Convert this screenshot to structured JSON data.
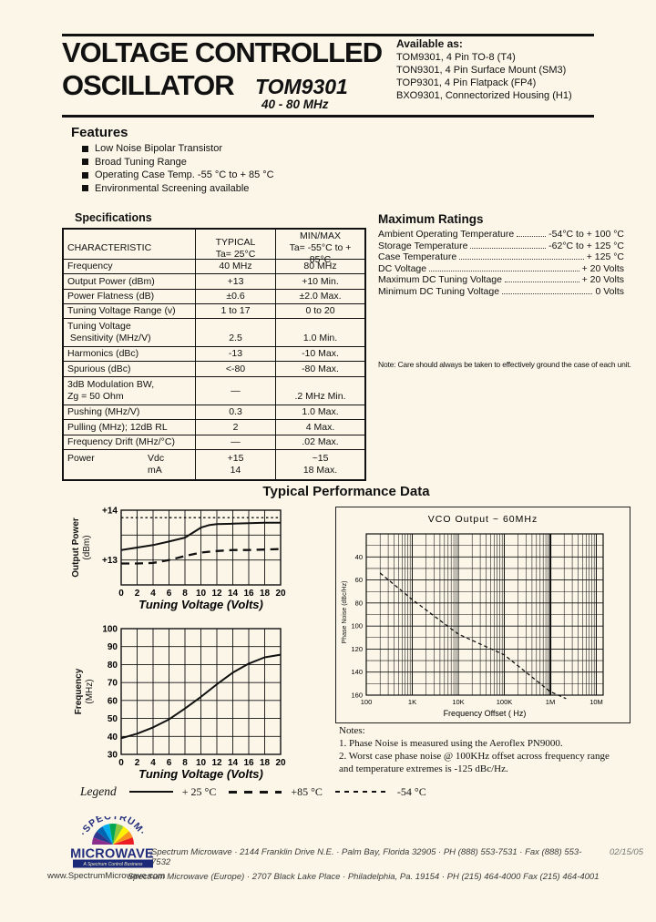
{
  "header": {
    "title_line1": "VOLTAGE CONTROLLED",
    "title_line2": "OSCILLATOR",
    "model": "TOM9301",
    "range": "40 - 80 MHz",
    "available_heading": "Available as:",
    "available": [
      "TOM9301, 4 Pin TO-8 (T4)",
      "TON9301, 4 Pin Surface Mount (SM3)",
      "TOP9301, 4 Pin Flatpack (FP4)",
      "BXO9301, Connectorized Housing (H1)"
    ]
  },
  "features": {
    "heading": "Features",
    "items": [
      "Low Noise Bipolar Transistor",
      "Broad Tuning Range",
      "Operating Case Temp. -55 °C to + 85 °C",
      "Environmental Screening available"
    ]
  },
  "specifications": {
    "heading": "Specifications",
    "header_row": {
      "c": [
        "CHARACTERISTIC"
      ],
      "t": [
        "TYPICAL",
        "Ta= 25°C"
      ],
      "m": [
        "MIN/MAX",
        "Ta= -55°C to + 85°C"
      ],
      "h": 32
    },
    "rows": [
      {
        "c": [
          "Frequency"
        ],
        "t": [
          "40 MHz"
        ],
        "m": [
          "80 MHz"
        ],
        "h": 15
      },
      {
        "c": [
          "Output Power (dBm)"
        ],
        "t": [
          "+13"
        ],
        "m": [
          "+10  Min."
        ],
        "h": 16
      },
      {
        "c": [
          "Power Flatness (dB)"
        ],
        "t": [
          "±0.6"
        ],
        "m": [
          "±2.0 Max."
        ],
        "h": 15
      },
      {
        "c": [
          "Tuning Voltage Range (v)"
        ],
        "t": [
          "1 to 17"
        ],
        "m": [
          "0 to 20"
        ],
        "h": 15
      },
      {
        "c": [
          "Tuning Voltage",
          " Sensitivity (MHz/V)"
        ],
        "t": [
          "",
          "2.5"
        ],
        "m": [
          "",
          "1.0 Min."
        ],
        "h": 30
      },
      {
        "c": [
          "Harmonics (dBc)"
        ],
        "t": [
          "-13"
        ],
        "m": [
          "-10 Max."
        ],
        "h": 15
      },
      {
        "c": [
          "Spurious (dBc)"
        ],
        "t": [
          "<-80"
        ],
        "m": [
          "-80 Max."
        ],
        "h": 16
      },
      {
        "c": [
          "3dB Modulation BW,",
          "Zg = 50 Ohm"
        ],
        "t": [
          "—"
        ],
        "m": [
          "",
          ".2 MHz Min."
        ],
        "h": 30
      },
      {
        "c": [
          "Pushing (MHz/V)"
        ],
        "t": [
          "0.3"
        ],
        "m": [
          "1.0 Max."
        ],
        "h": 15
      },
      {
        "c": [
          "Pulling (MHz); 12dB RL"
        ],
        "t": [
          "2"
        ],
        "m": [
          "4 Max."
        ],
        "h": 16
      },
      {
        "c": [
          "Frequency Drift (MHz/°C)"
        ],
        "t": [
          "—"
        ],
        "m": [
          ".02 Max."
        ],
        "h": 15
      },
      {
        "c": [
          {
            "t": "Power",
            "s": "Vdc"
          },
          {
            "t": "",
            "s": "mA"
          }
        ],
        "t": [
          "+15",
          "14"
        ],
        "m": [
          "~15",
          "18 Max."
        ],
        "h": 32
      }
    ]
  },
  "maximum_ratings": {
    "heading": "Maximum Ratings",
    "items": [
      {
        "label": "Ambient Operating Temperature",
        "value": "-54°C to + 100 °C"
      },
      {
        "label": "Storage Temperature",
        "value": "-62°C to + 125 °C"
      },
      {
        "label": "Case Temperature",
        "value": "+ 125 °C"
      },
      {
        "label": "DC Voltage",
        "value": "+ 20 Volts"
      },
      {
        "label": "Maximum DC Tuning Voltage",
        "value": "+ 20 Volts"
      },
      {
        "label": "Minimum DC Tuning Voltage",
        "value": "0 Volts"
      }
    ],
    "note": "Note: Care should always be taken to effectively ground the case of each unit."
  },
  "performance": {
    "heading": "Typical Performance Data",
    "legend": {
      "label": "Legend",
      "entries": [
        {
          "style": "solid",
          "label": "+ 25 °C"
        },
        {
          "style": "long-dash",
          "label": "+85 °C"
        },
        {
          "style": "short-dash",
          "label": "-54 °C"
        }
      ]
    },
    "notes": [
      "Notes:",
      "1. Phase Noise is measured using the Aeroflex PN9000.",
      "2. Worst case phase noise @ 100KHz offset across frequency range",
      "and temperature extremes is -125 dBc/Hz."
    ]
  },
  "chart_data": [
    {
      "type": "line",
      "title": "",
      "xlabel": "Tuning Voltage (Volts)",
      "ylabel": "Output Power (dBm)",
      "ylabel_line1": "Output Power",
      "ylabel_line2": "(dBm)",
      "xlim": [
        0,
        20
      ],
      "ylim": [
        12.5,
        14
      ],
      "xticks": [
        0,
        2,
        4,
        6,
        8,
        10,
        12,
        14,
        16,
        18,
        20
      ],
      "yticks": [
        {
          "v": 14,
          "label": "+14"
        },
        {
          "v": 13,
          "label": "+13"
        }
      ],
      "grid_y": [
        13.5,
        13
      ],
      "grid": true,
      "series": [
        {
          "name": "+ 25 °C",
          "style": "solid",
          "x": [
            0,
            2,
            4,
            6,
            8,
            9,
            10,
            11,
            12,
            14,
            16,
            18,
            20
          ],
          "y": [
            13.2,
            13.25,
            13.3,
            13.37,
            13.45,
            13.55,
            13.65,
            13.7,
            13.72,
            13.73,
            13.74,
            13.75,
            13.75
          ]
        },
        {
          "name": "+85 °C",
          "style": "long-dash",
          "x": [
            0,
            2,
            4,
            6,
            8,
            10,
            12,
            14,
            16,
            18,
            20
          ],
          "y": [
            12.93,
            12.93,
            12.94,
            13.0,
            13.08,
            13.15,
            13.18,
            13.2,
            13.2,
            13.21,
            13.22
          ]
        },
        {
          "name": "-54 °C",
          "style": "short-dash",
          "x": [
            0,
            20
          ],
          "y": [
            13.85,
            13.85
          ]
        }
      ]
    },
    {
      "type": "line",
      "title": "",
      "xlabel": "Tuning Voltage (Volts)",
      "ylabel": "Frequency (MHz)",
      "ylabel_line1": "Frequency",
      "ylabel_line2": "(MHz)",
      "xlim": [
        0,
        20
      ],
      "ylim": [
        30,
        100
      ],
      "xticks": [
        0,
        2,
        4,
        6,
        8,
        10,
        12,
        14,
        16,
        18,
        20
      ],
      "yticks": [
        {
          "v": 100,
          "label": "100"
        },
        {
          "v": 90,
          "label": "90"
        },
        {
          "v": 80,
          "label": "80"
        },
        {
          "v": 70,
          "label": "70"
        },
        {
          "v": 60,
          "label": "60"
        },
        {
          "v": 50,
          "label": "50"
        },
        {
          "v": 40,
          "label": "40"
        },
        {
          "v": 30,
          "label": "30"
        }
      ],
      "grid_y": [
        90,
        80,
        70,
        60,
        50,
        40
      ],
      "grid": true,
      "series": [
        {
          "name": "+ 25 °C",
          "style": "solid",
          "x": [
            0,
            2,
            4,
            6,
            8,
            10,
            12,
            14,
            16,
            18,
            20
          ],
          "y": [
            39,
            41.5,
            45,
            49.5,
            55.5,
            62,
            69,
            75.5,
            80.5,
            84,
            85.5
          ]
        }
      ]
    },
    {
      "type": "line",
      "title": "VCO Output ~ 60MHz",
      "xlabel": "Frequency Offset ( Hz)",
      "ylabel": "Phase Noise (dBc/Hz)",
      "xscale": "log",
      "xlim": [
        100,
        10000000
      ],
      "ylim": [
        -160,
        -20
      ],
      "xtick_labels": [
        "100",
        "1K",
        "10K",
        "100K",
        "1M",
        "10M"
      ],
      "xtick_values": [
        100,
        1000,
        10000,
        100000,
        1000000,
        10000000
      ],
      "ytick_labels": [
        "40",
        "60",
        "80",
        "100",
        "120",
        "140",
        "160"
      ],
      "ytick_values": [
        -40,
        -60,
        -80,
        -100,
        -120,
        -140,
        -160
      ],
      "grid": true,
      "series": [
        {
          "name": "phase-noise",
          "style": "dash",
          "x": [
            200,
            1000,
            10000,
            100000,
            1000000,
            2200000
          ],
          "y": [
            -54,
            -77,
            -107,
            -125,
            -157,
            -163
          ]
        }
      ]
    }
  ],
  "footer": {
    "logo": {
      "arc_text": "·SPECTRUM·",
      "name": "MICROWAVE",
      "inc": "INC",
      "banner": "A Spectrum Control Business",
      "blue": "#232e7d",
      "rainbow": [
        "#8B2E8E",
        "#2B3990",
        "#0066B3",
        "#00AEEF",
        "#00A651",
        "#8DC63F",
        "#FFF200",
        "#F7941D",
        "#ED1C24"
      ]
    },
    "website": "www.SpectrumMicrowave.com",
    "line1": "Spectrum Microwave · 2144 Franklin Drive N.E. · Palm Bay, Florida 32905 · PH (888) 553-7531 · Fax (888) 553-7532",
    "date": "02/15/05",
    "line2": "Spectrum Microwave (Europe) · 2707 Black Lake Place · Philadelphia, Pa. 19154 · PH (215) 464-4000   Fax (215) 464-4001"
  }
}
